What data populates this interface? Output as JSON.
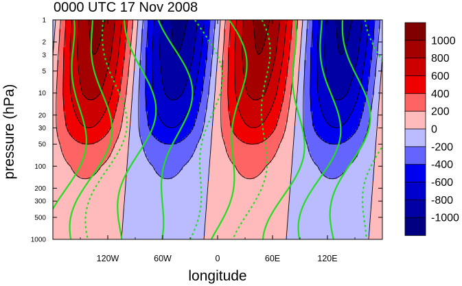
{
  "chart_data": {
    "type": "contour",
    "title": "0000 UTC 17 Nov 2008",
    "xlabel": "longitude",
    "ylabel": "pressure (hPa)",
    "x_range": [
      -180,
      180
    ],
    "x_ticks": [
      {
        "value": -120,
        "label": "120W"
      },
      {
        "value": -60,
        "label": "60W"
      },
      {
        "value": 0,
        "label": "0"
      },
      {
        "value": 60,
        "label": "60E"
      },
      {
        "value": 120,
        "label": "120E"
      }
    ],
    "y_scale": "log",
    "y_range": [
      1000,
      1
    ],
    "y_ticks": [
      {
        "value": 1,
        "label": "1"
      },
      {
        "value": 2,
        "label": "2"
      },
      {
        "value": 3,
        "label": "3"
      },
      {
        "value": 5,
        "label": "5"
      },
      {
        "value": 10,
        "label": "10"
      },
      {
        "value": 20,
        "label": "20"
      },
      {
        "value": 30,
        "label": "30"
      },
      {
        "value": 50,
        "label": "50"
      },
      {
        "value": 100,
        "label": "100"
      },
      {
        "value": 200,
        "label": "200"
      },
      {
        "value": 300,
        "label": "300"
      },
      {
        "value": 500,
        "label": "500"
      },
      {
        "value": 1000,
        "label": "1000"
      }
    ],
    "colorbar": {
      "levels": [
        1000,
        800,
        600,
        400,
        200,
        0,
        -200,
        -400,
        -600,
        -800,
        -1000
      ],
      "labels": [
        "1000",
        "800",
        "600",
        "400",
        "200",
        "0",
        "-200",
        "-400",
        "-600",
        "-800",
        "-1000"
      ],
      "colors": [
        "#800000",
        "#a50000",
        "#cc0000",
        "#f00000",
        "#ff6464",
        "#ffbbbb",
        "#bbbbff",
        "#6464ff",
        "#0000f0",
        "#0000cc",
        "#0000a5",
        "#000080"
      ]
    },
    "structure": {
      "wave_centers_lon": [
        -150,
        -30,
        30,
        150
      ],
      "signs": [
        1,
        -1,
        1,
        -1
      ],
      "base_amplitude_hPa_level": [
        {
          "p": 1000,
          "amp": 30
        },
        {
          "p": 500,
          "amp": 60
        },
        {
          "p": 300,
          "amp": 130
        },
        {
          "p": 100,
          "amp": 240
        },
        {
          "p": 50,
          "amp": 400
        },
        {
          "p": 30,
          "amp": 600
        },
        {
          "p": 10,
          "amp": 850
        },
        {
          "p": 3,
          "amp": 1000
        },
        {
          "p": 1,
          "amp": 1050
        }
      ],
      "green_contour_color": "#22dd22"
    }
  }
}
